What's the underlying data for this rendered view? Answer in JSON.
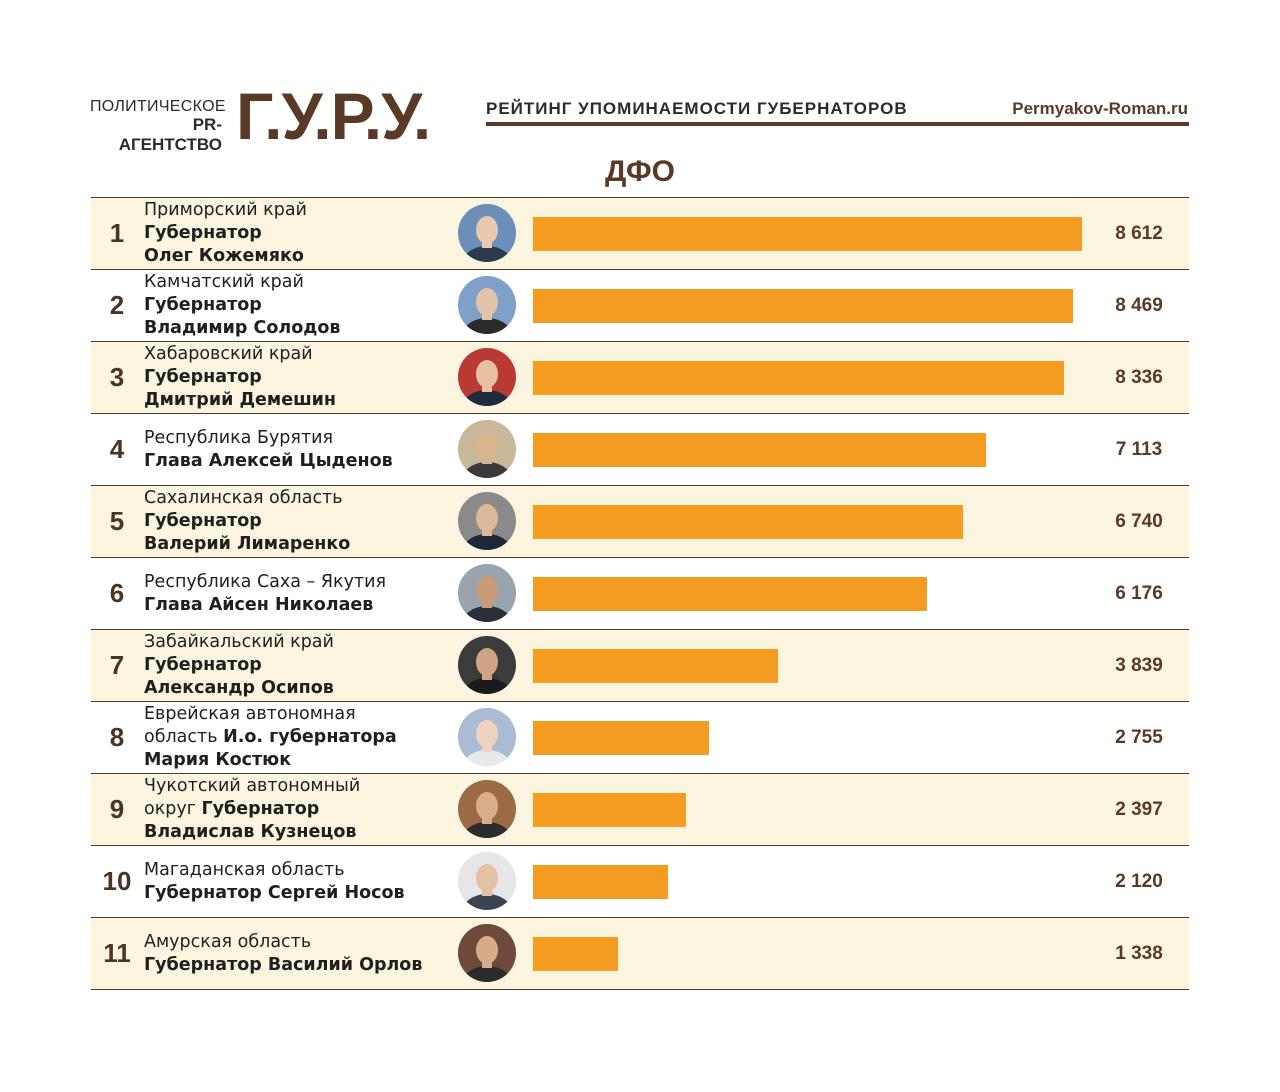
{
  "header": {
    "agency_line1": "ПОЛИТИЧЕСКОЕ",
    "agency_line2": "PR-АГЕНТСТВО",
    "logo": "Г.У.Р.У.",
    "rating_title": "РЕЙТИНГ УПОМИНАЕМОСТИ ГУБЕРНАТОРОВ",
    "site": "Permyakov-Roman.ru"
  },
  "region_title": "ДФО",
  "colors": {
    "bar": "#f49b21",
    "accent_brown": "#5a3a26",
    "odd_row_bg": "#fbf4de"
  },
  "chart_data": {
    "type": "bar",
    "orientation": "horizontal",
    "title": "ДФО",
    "xlim": [
      0,
      8612
    ],
    "grid": false,
    "legend": "none",
    "categories": [
      "Приморский край Губернатор Олег Кожемяко",
      "Камчатский край Губернатор Владимир Солодов",
      "Хабаровский край Губернатор Дмитрий Демешин",
      "Республика Бурятия Глава Алексей Цыденов",
      "Сахалинская область Губернатор Валерий Лимаренко",
      "Республика Саха – Якутия Глава Айсен Николаев",
      "Забайкальский край Губернатор Александр Осипов",
      "Еврейская автономная область И.о. губернатора Мария Костюк",
      "Чукотский автономный округ Губернатор Владислав Кузнецов",
      "Магаданская область Губернатор Сергей Носов",
      "Амурская область Губернатор Василий Орлов"
    ],
    "values": [
      8612,
      8469,
      8336,
      7113,
      6740,
      6176,
      3839,
      2755,
      2397,
      2120,
      1338
    ]
  },
  "rows": [
    {
      "rank": "1",
      "lines": [
        {
          "regular": "Приморский край"
        },
        {
          "bold": "Губернатор"
        },
        {
          "bold": "Олег Кожемяко"
        }
      ],
      "value_label": "8 612",
      "value": 8612,
      "avatar_icon": "portrait-photo"
    },
    {
      "rank": "2",
      "lines": [
        {
          "regular": "Камчатский край"
        },
        {
          "bold": "Губернатор"
        },
        {
          "bold": "Владимир Солодов"
        }
      ],
      "value_label": "8 469",
      "value": 8469,
      "avatar_icon": "portrait-photo"
    },
    {
      "rank": "3",
      "lines": [
        {
          "regular": "Хабаровский край"
        },
        {
          "bold": "Губернатор"
        },
        {
          "bold": "Дмитрий Демешин"
        }
      ],
      "value_label": "8 336",
      "value": 8336,
      "avatar_icon": "portrait-photo"
    },
    {
      "rank": "4",
      "lines": [
        {
          "regular": "Республика Бурятия"
        },
        {
          "bold": "Глава Алексей Цыденов"
        }
      ],
      "value_label": "7 113",
      "value": 7113,
      "avatar_icon": "portrait-photo"
    },
    {
      "rank": "5",
      "lines": [
        {
          "regular": "Сахалинская область"
        },
        {
          "bold": "Губернатор"
        },
        {
          "bold": "Валерий Лимаренко"
        }
      ],
      "value_label": "6 740",
      "value": 6740,
      "avatar_icon": "portrait-photo"
    },
    {
      "rank": "6",
      "lines": [
        {
          "regular": "Республика Саха – Якутия"
        },
        {
          "bold": "Глава Айсен Николаев"
        }
      ],
      "value_label": "6 176",
      "value": 6176,
      "avatar_icon": "portrait-photo"
    },
    {
      "rank": "7",
      "lines": [
        {
          "regular": "Забайкальский край"
        },
        {
          "bold": "Губернатор"
        },
        {
          "bold": "Александр Осипов"
        }
      ],
      "value_label": "3 839",
      "value": 3839,
      "avatar_icon": "portrait-photo"
    },
    {
      "rank": "8",
      "lines": [
        {
          "regular": "Еврейская автономная"
        },
        {
          "regular": "область ",
          "bold": "И.о. губернатора"
        },
        {
          "bold": "Мария Костюк"
        }
      ],
      "value_label": "2 755",
      "value": 2755,
      "avatar_icon": "portrait-photo"
    },
    {
      "rank": "9",
      "lines": [
        {
          "regular": "Чукотский автономный"
        },
        {
          "regular": "округ ",
          "bold": "Губернатор"
        },
        {
          "bold": "Владислав Кузнецов"
        }
      ],
      "value_label": "2 397",
      "value": 2397,
      "avatar_icon": "portrait-photo"
    },
    {
      "rank": "10",
      "lines": [
        {
          "regular": "Магаданская область"
        },
        {
          "bold": "Губернатор Сергей Носов"
        }
      ],
      "value_label": "2 120",
      "value": 2120,
      "avatar_icon": "portrait-photo"
    },
    {
      "rank": "11",
      "lines": [
        {
          "regular": "Амурская область"
        },
        {
          "bold": "Губернатор Василий Орлов"
        }
      ],
      "value_label": "1 338",
      "value": 1338,
      "avatar_icon": "portrait-photo"
    }
  ]
}
